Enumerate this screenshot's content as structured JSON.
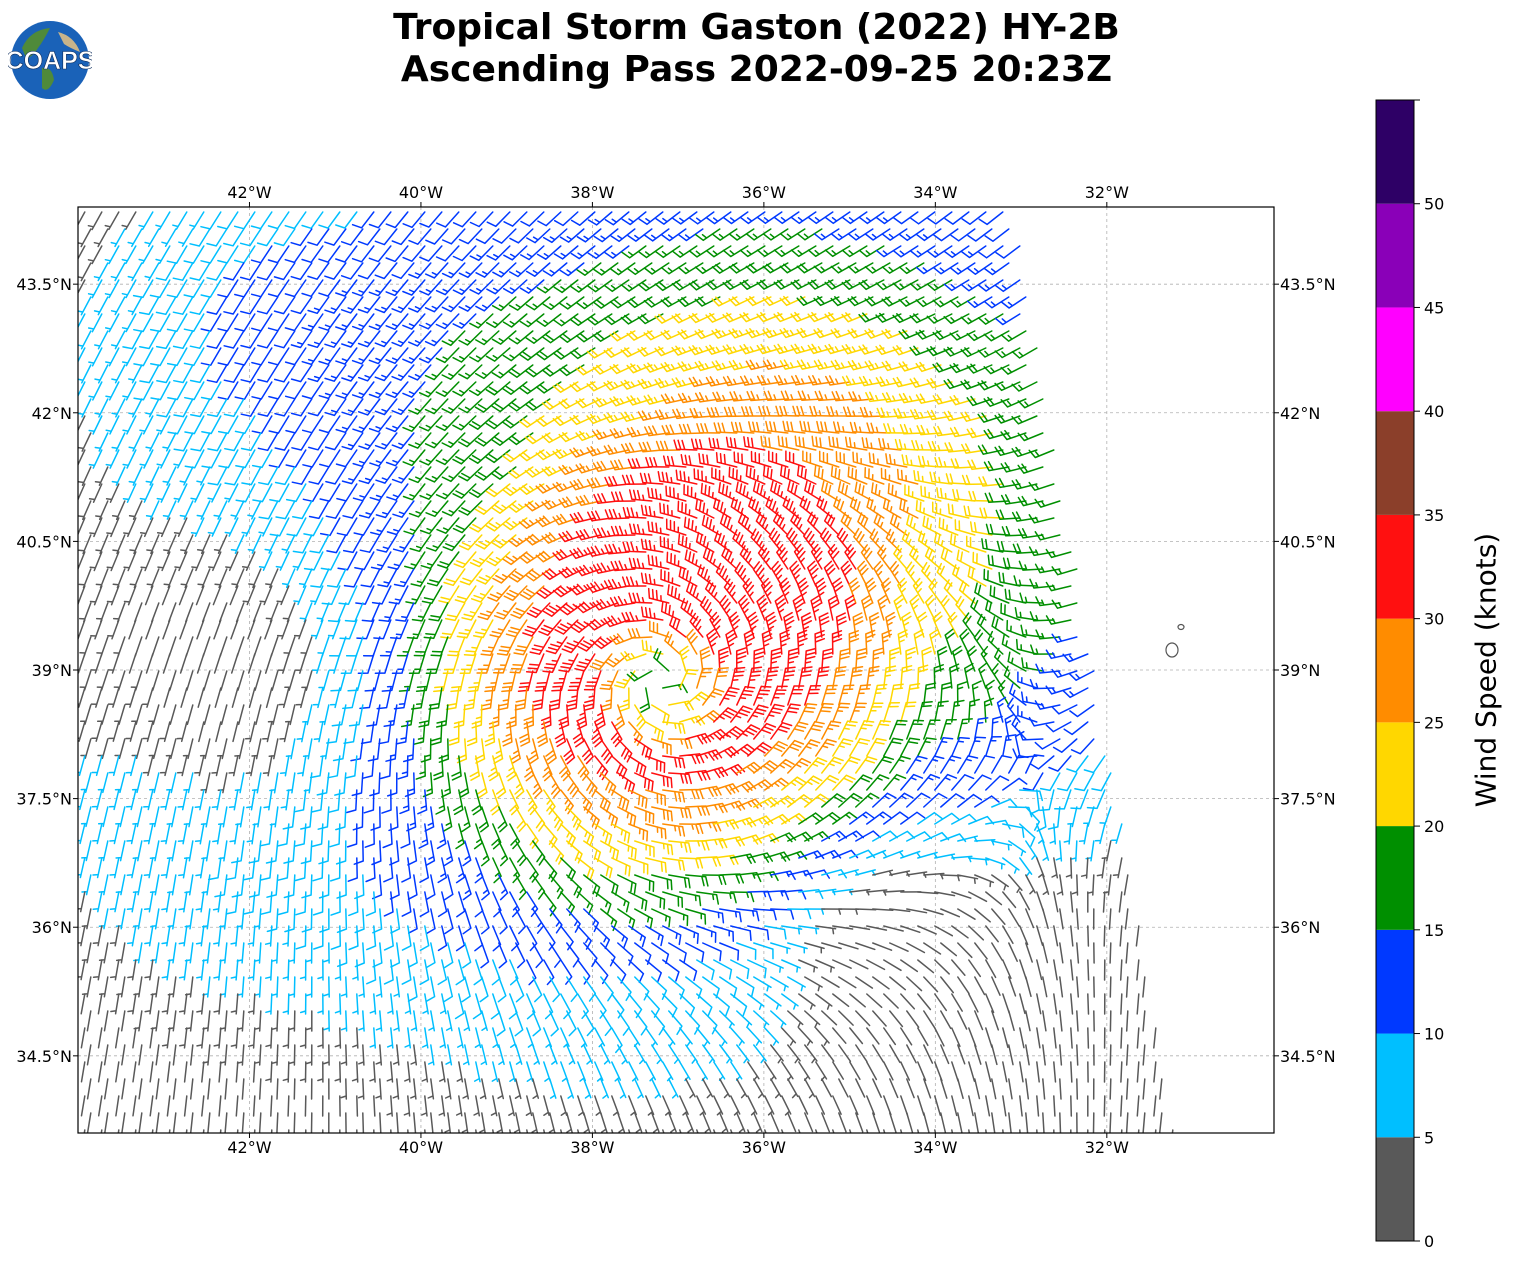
{
  "header": {
    "logo_text": "COAPS",
    "title_line1": "Tropical Storm Gaston (2022) HY-2B",
    "title_line2": "Ascending Pass 2022-09-25 20:23Z"
  },
  "map": {
    "lon_range": [
      -44.0,
      -30.05
    ],
    "lat_range": [
      33.6,
      44.4
    ],
    "lon_ticks": [
      "42°W",
      "40°W",
      "38°W",
      "36°W",
      "34°W",
      "32°W"
    ],
    "lon_tick_values": [
      -42,
      -40,
      -38,
      -36,
      -34,
      -32
    ],
    "lat_ticks": [
      "43.5°N",
      "42°N",
      "40.5°N",
      "39°N",
      "37.5°N",
      "36°N",
      "34.5°N"
    ],
    "lat_tick_values": [
      43.5,
      42,
      40.5,
      39,
      37.5,
      36,
      34.5
    ],
    "gridlines": true,
    "storm_center": {
      "lat": 38.85,
      "lon": -37.2
    },
    "swath_east_edge": [
      [
        44.2,
        -33.05
      ],
      [
        33.7,
        -31.2
      ]
    ]
  },
  "colorbar": {
    "label": "Wind Speed (knots)",
    "tick_labels": [
      "0",
      "5",
      "10",
      "15",
      "20",
      "25",
      "30",
      "35",
      "40",
      "45",
      "50"
    ],
    "bins": [
      {
        "min": 0,
        "max": 5,
        "color": "#595959"
      },
      {
        "min": 5,
        "max": 10,
        "color": "#00bfff"
      },
      {
        "min": 10,
        "max": 15,
        "color": "#0039ff"
      },
      {
        "min": 15,
        "max": 20,
        "color": "#008f00"
      },
      {
        "min": 20,
        "max": 25,
        "color": "#ffd700"
      },
      {
        "min": 25,
        "max": 30,
        "color": "#ff8c00"
      },
      {
        "min": 30,
        "max": 35,
        "color": "#ff1010"
      },
      {
        "min": 35,
        "max": 40,
        "color": "#8b3f2a"
      },
      {
        "min": 40,
        "max": 45,
        "color": "#ff00ff"
      },
      {
        "min": 45,
        "max": 50,
        "color": "#8a00b8"
      },
      {
        "min": 50,
        "max": 55,
        "color": "#2e0066"
      }
    ]
  }
}
